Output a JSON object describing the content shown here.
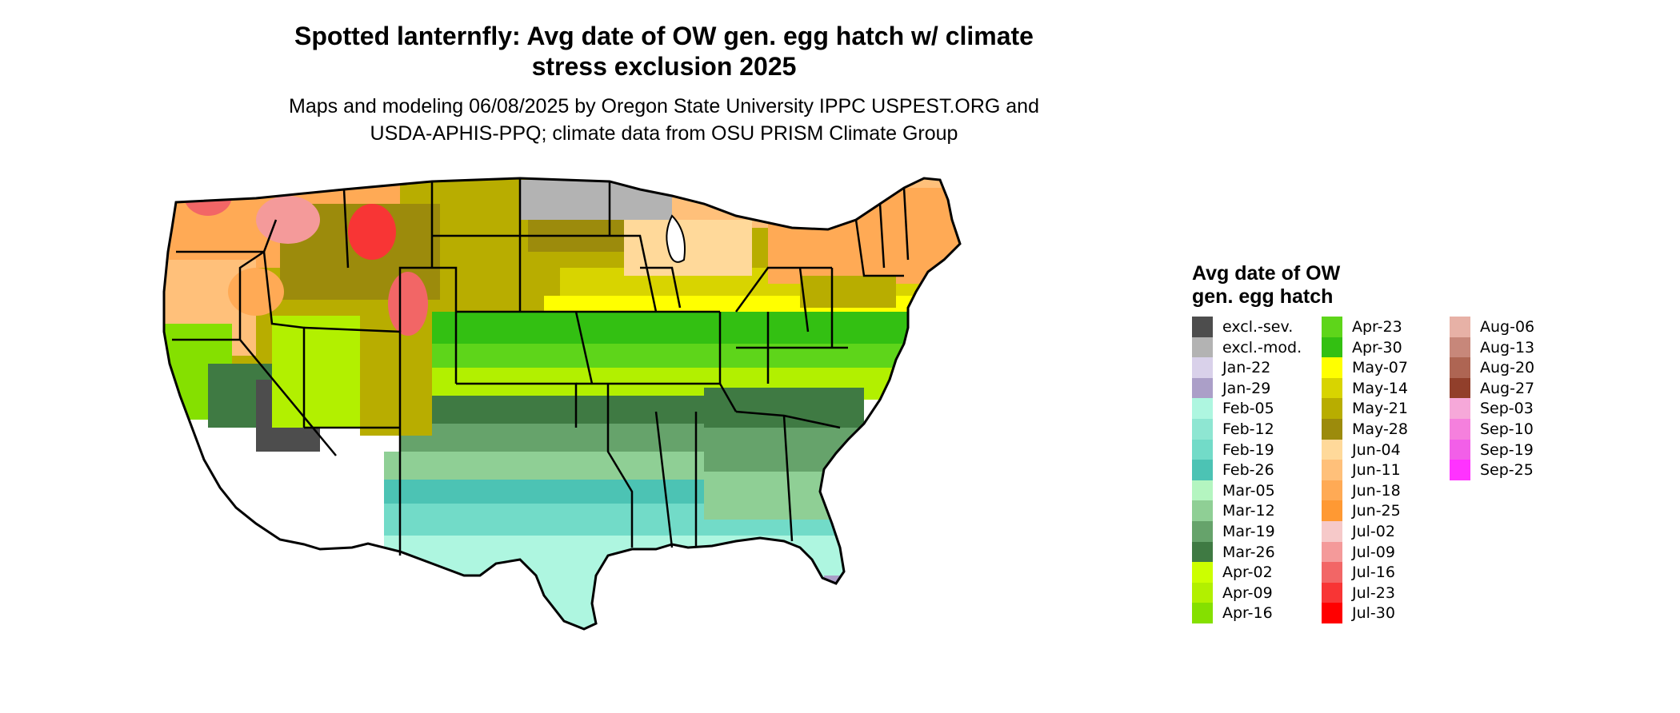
{
  "title": "Spotted lanternfly: Avg date of OW gen. egg hatch w/ climate stress exclusion 2025",
  "title_line1": "Spotted lanternfly: Avg date of OW gen. egg hatch w/ climate",
  "title_line2": "stress exclusion 2025",
  "subtitle_line1": "Maps and modeling 06/08/2025 by Oregon State University IPPC USPEST.ORG and",
  "subtitle_line2": "USDA-APHIS-PPQ; climate data from OSU PRISM Climate Group",
  "legend": {
    "title_line1": "Avg date of OW",
    "title_line2": "gen. egg hatch",
    "columns": [
      [
        {
          "label": "excl.-sev.",
          "color": "#4d4d4d"
        },
        {
          "label": "excl.-mod.",
          "color": "#b3b3b3"
        },
        {
          "label": "Jan-22",
          "color": "#d9d1ea"
        },
        {
          "label": "Jan-29",
          "color": "#ab9fc8"
        },
        {
          "label": "Feb-05",
          "color": "#aef6e0"
        },
        {
          "label": "Feb-12",
          "color": "#8ee6d2"
        },
        {
          "label": "Feb-19",
          "color": "#72dbc8"
        },
        {
          "label": "Feb-26",
          "color": "#4cc3b4"
        },
        {
          "label": "Mar-05",
          "color": "#b4f5c0"
        },
        {
          "label": "Mar-12",
          "color": "#8fcf95"
        },
        {
          "label": "Mar-19",
          "color": "#66a36b"
        },
        {
          "label": "Mar-26",
          "color": "#3f7a43"
        },
        {
          "label": "Apr-02",
          "color": "#ccff00"
        },
        {
          "label": "Apr-09",
          "color": "#b2f000"
        },
        {
          "label": "Apr-16",
          "color": "#85e000"
        }
      ],
      [
        {
          "label": "Apr-23",
          "color": "#5ed51a"
        },
        {
          "label": "Apr-30",
          "color": "#33c012"
        },
        {
          "label": "May-07",
          "color": "#ffff00"
        },
        {
          "label": "May-14",
          "color": "#d8d400"
        },
        {
          "label": "May-21",
          "color": "#b8ad00"
        },
        {
          "label": "May-28",
          "color": "#9c8b0c"
        },
        {
          "label": "Jun-04",
          "color": "#ffd99a"
        },
        {
          "label": "Jun-11",
          "color": "#ffc07a"
        },
        {
          "label": "Jun-18",
          "color": "#ffaa55"
        },
        {
          "label": "Jun-25",
          "color": "#ff9933"
        },
        {
          "label": "Jul-02",
          "color": "#f6c9c9"
        },
        {
          "label": "Jul-09",
          "color": "#f49a9a"
        },
        {
          "label": "Jul-16",
          "color": "#f26666"
        },
        {
          "label": "Jul-23",
          "color": "#f83535"
        },
        {
          "label": "Jul-30",
          "color": "#ff0000"
        }
      ],
      [
        {
          "label": "Aug-06",
          "color": "#e7b1a6"
        },
        {
          "label": "Aug-13",
          "color": "#c7877a"
        },
        {
          "label": "Aug-20",
          "color": "#ae6553"
        },
        {
          "label": "Aug-27",
          "color": "#913f2b"
        },
        {
          "label": "Sep-03",
          "color": "#f6a8d9"
        },
        {
          "label": "Sep-10",
          "color": "#f580dd"
        },
        {
          "label": "Sep-19",
          "color": "#f25fe8"
        },
        {
          "label": "Sep-25",
          "color": "#ff33ff"
        }
      ]
    ]
  }
}
